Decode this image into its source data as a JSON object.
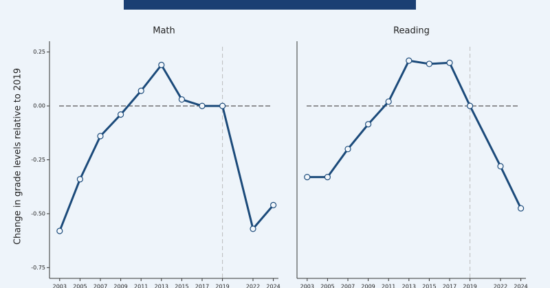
{
  "chart_data": [
    {
      "type": "line",
      "title": "Math",
      "ylabel": "Change in grade levels relative to 2019",
      "x": [
        2003,
        2005,
        2007,
        2009,
        2011,
        2013,
        2015,
        2017,
        2019,
        2022,
        2024
      ],
      "values": [
        -0.58,
        -0.34,
        -0.14,
        -0.04,
        0.07,
        0.19,
        0.03,
        0.0,
        0.0,
        -0.57,
        -0.46
      ],
      "color": "#1b4a7a",
      "xlim": [
        2002,
        2024.5
      ],
      "xticks": [
        2003,
        2005,
        2007,
        2009,
        2011,
        2013,
        2015,
        2017,
        2019,
        2022,
        2024
      ],
      "ylim": [
        -0.8,
        0.3
      ],
      "yticks": [
        0.25,
        {
          "value": 0,
          "label": "0.00"
        },
        -0.25,
        {
          "value": -0.5,
          "label": "-0.50"
        },
        -0.75
      ],
      "reference_x": 2019,
      "reference_y": 0
    },
    {
      "type": "line",
      "title": "Reading",
      "x": [
        2003,
        2005,
        2007,
        2009,
        2011,
        2013,
        2015,
        2017,
        2019,
        2022,
        2024
      ],
      "values": [
        -0.33,
        -0.33,
        -0.2,
        -0.085,
        0.02,
        0.21,
        0.195,
        0.2,
        0.0,
        -0.28,
        -0.475
      ],
      "color": "#1b4a7a",
      "xlim": [
        2002,
        2024.5
      ],
      "xticks": [
        2003,
        2005,
        2007,
        2009,
        2011,
        2013,
        2015,
        2017,
        2019,
        2022,
        2024
      ],
      "ylim": [
        -0.8,
        0.3
      ],
      "reference_x": 2019,
      "reference_y": 0
    }
  ]
}
